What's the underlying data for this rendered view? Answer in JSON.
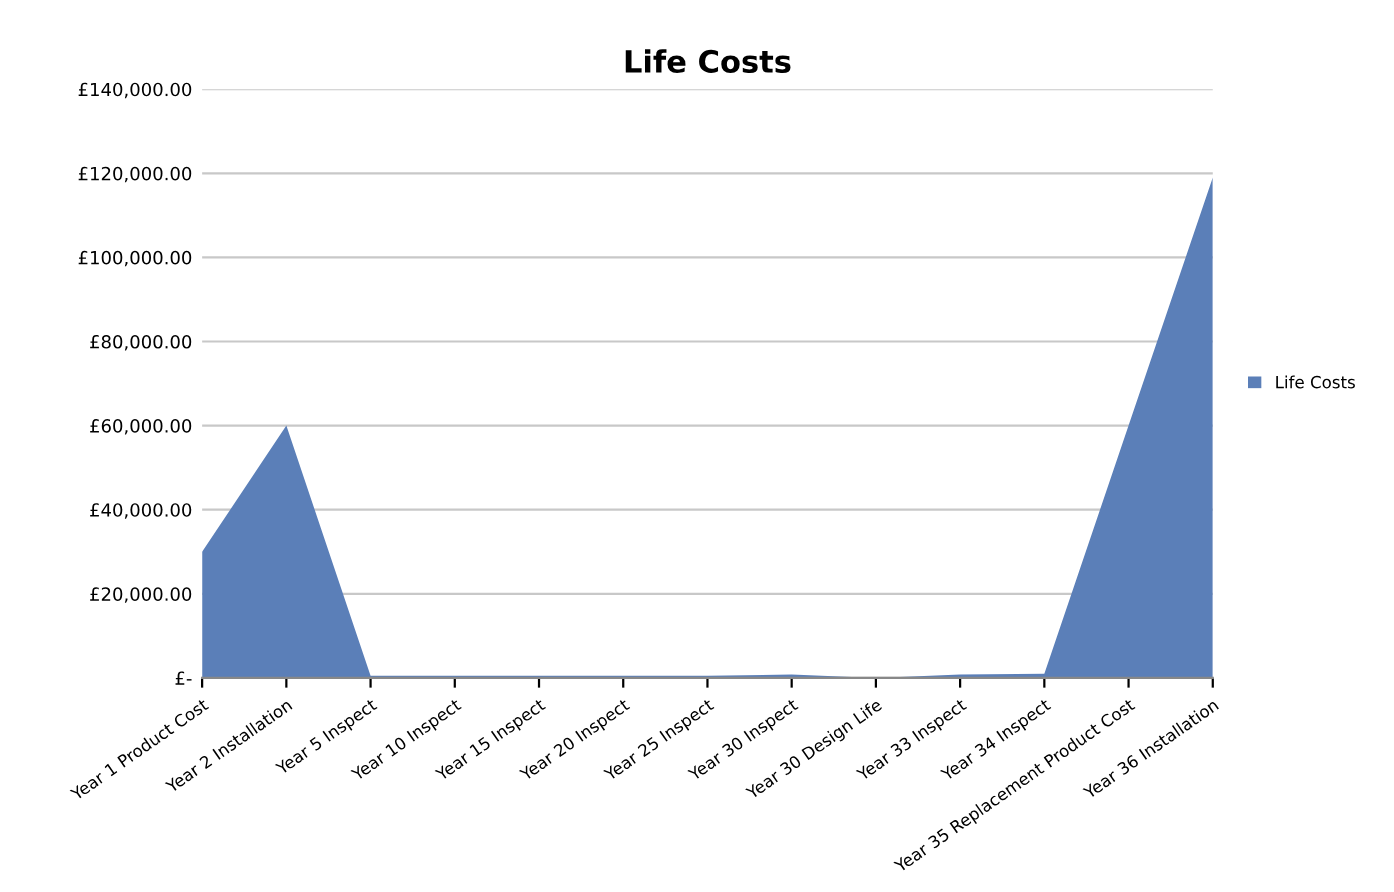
{
  "chart_data": {
    "type": "area",
    "title": "Life Costs",
    "categories": [
      "Year 1 Product Cost",
      "Year 2 Installation",
      "Year 5 Inspect",
      "Year 10 Inspect",
      "Year 15 Inspect",
      "Year 20 Inspect",
      "Year 25 Inspect",
      "Year 30 Inspect",
      "Year 30 Design Life",
      "Year 33 Inspect",
      "Year 34 Inspect",
      "Year 35 Replacement Product Cost",
      "Year 36 Installation"
    ],
    "series": [
      {
        "name": "Life Costs",
        "color": "#5b7fb8",
        "values": [
          30000,
          60000,
          500,
          500,
          500,
          500,
          500,
          800,
          0,
          800,
          1000,
          60000,
          119000
        ]
      }
    ],
    "ylim": [
      0,
      140000
    ],
    "yticks": [
      {
        "value": 0,
        "label": "£-"
      },
      {
        "value": 20000,
        "label": "£20,000.00"
      },
      {
        "value": 40000,
        "label": "£40,000.00"
      },
      {
        "value": 60000,
        "label": "£60,000.00"
      },
      {
        "value": 80000,
        "label": "£80,000.00"
      },
      {
        "value": 100000,
        "label": "£100,000.00"
      },
      {
        "value": 120000,
        "label": "£120,000.00"
      },
      {
        "value": 140000,
        "label": "£140,000.00"
      }
    ],
    "grid": "y",
    "legend": "right"
  }
}
